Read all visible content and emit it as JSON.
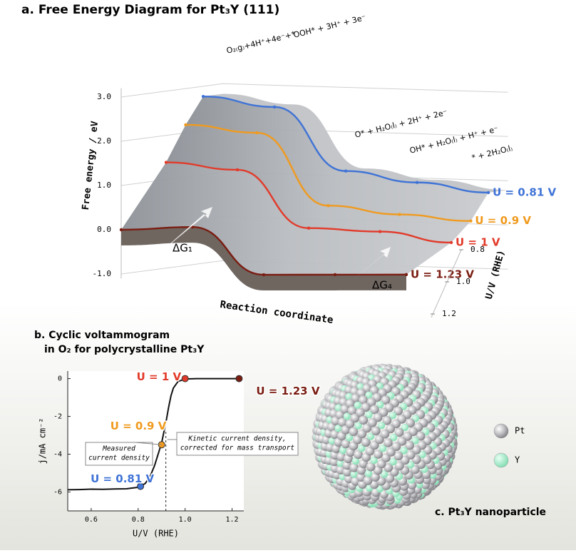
{
  "chart_data": [
    {
      "type": "surface3d",
      "title": "a. Free Energy Diagram for Pt₃Y (111)",
      "y_label": "Free energy / eV",
      "x_label": "Reaction coordinate",
      "u_label": "U/V (RHE)",
      "categories": [
        "O₂₍g₎+4H⁺+4e⁻+*",
        "OOH* + 3H⁺ + 3e⁻",
        "O* + H₂O₍l₎ + 2H⁺ + 2e⁻",
        "OH* + H₂O₍l₎ + H⁺ + e⁻",
        "* + 2H₂O₍l₎"
      ],
      "ylim": [
        -1.1,
        3.2
      ],
      "yticks": [
        {
          "value": -1,
          "label": "-1.0"
        },
        {
          "value": 0,
          "label": "0.0"
        },
        {
          "value": 1,
          "label": "1.0"
        },
        {
          "value": 2,
          "label": "2.0"
        },
        {
          "value": 3,
          "label": "3.0"
        }
      ],
      "uticks": [
        0.8,
        {
          "value": 1,
          "label": "1.0"
        },
        1.2
      ],
      "series": [
        {
          "name": "U = 0.81 V",
          "u": 0.81,
          "color": "#3f73d6",
          "values": [
            2.77,
            2.58,
            1.18,
            0.97,
            0.79
          ]
        },
        {
          "name": "U = 0.9 V",
          "u": 0.9,
          "color": "#f09a1e",
          "values": [
            2.18,
            2.05,
            0.45,
            0.3,
            0.2
          ]
        },
        {
          "name": "U = 1 V",
          "u": 1,
          "color": "#e23a2a",
          "values": [
            1.39,
            1.27,
            0.0,
            -0.03,
            -0.23
          ]
        },
        {
          "name": "U = 1.23 V",
          "u": 1.23,
          "color": "#7a1d12",
          "values": [
            0.0,
            0.11,
            -0.92,
            -0.87,
            -0.82
          ]
        }
      ],
      "annotations": [
        "ΔG₁",
        "ΔG₄"
      ]
    },
    {
      "type": "line",
      "title": [
        "b. Cyclic voltammogram",
        "in O₂ for polycrystalline Pt₃Y"
      ],
      "x_label": "U/V (RHE)",
      "y_label": "j/mA cm⁻²",
      "xlim": [
        0.5,
        1.25
      ],
      "xticks": [
        0.6,
        0.8,
        {
          "value": 1,
          "label": "1.0"
        },
        1.2
      ],
      "ylim": [
        -7,
        0.4
      ],
      "yticks": [
        -6,
        -4,
        -2,
        0
      ],
      "x": [
        0.5,
        0.55,
        0.6,
        0.65,
        0.7,
        0.75,
        0.8,
        0.83,
        0.85,
        0.87,
        0.88,
        0.89,
        0.9,
        0.91,
        0.92,
        0.93,
        0.94,
        0.95,
        0.97,
        1.0,
        1.05,
        1.1,
        1.15,
        1.2,
        1.23
      ],
      "series": [
        {
          "color": "#111111",
          "values": [
            -5.88,
            -5.87,
            -5.85,
            -5.86,
            -5.84,
            -5.83,
            -5.75,
            -5.55,
            -5.2,
            -4.6,
            -4.2,
            -3.8,
            -3.4,
            -2.8,
            -2.2,
            -1.5,
            -0.9,
            -0.5,
            -0.15,
            -0.02,
            0,
            0,
            0,
            0,
            0
          ]
        }
      ],
      "highlights": [
        {
          "label": "U = 0.81 V",
          "x": 0.81,
          "y": -5.7,
          "color": "#3f73d6"
        },
        {
          "label": "U = 0.9 V",
          "x": 0.9,
          "y": -3.5,
          "color": "#f09a1e"
        },
        {
          "label": "U = 1 V",
          "x": 1,
          "y": 0,
          "color": "#e23a2a"
        },
        {
          "label": "U = 1.23 V",
          "x": 1.23,
          "y": 0,
          "color": "#7a1d12"
        }
      ],
      "kinetic_x": 0.918,
      "measured_note": [
        "Measured",
        "current density"
      ],
      "kinetic_note": [
        "Kinetic current density,",
        "corrected for mass transport"
      ]
    }
  ],
  "panel_c": {
    "title": "c. Pt₃Y nanoparticle",
    "legend": [
      "Pt",
      "Y"
    ]
  }
}
